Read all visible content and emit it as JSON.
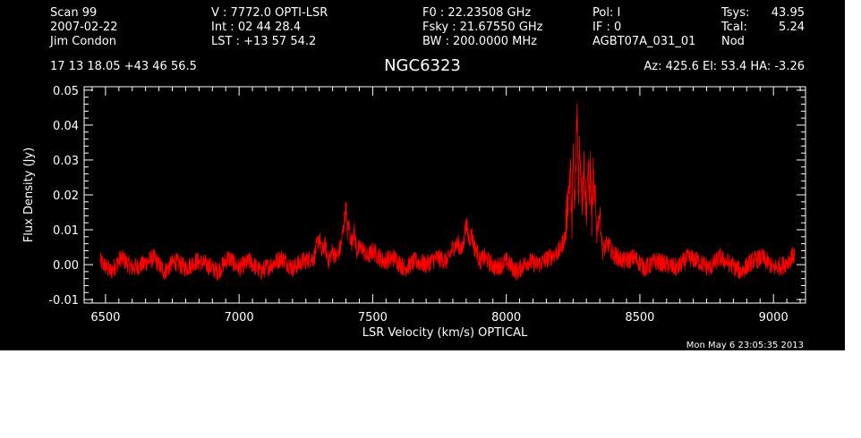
{
  "header": {
    "col1": [
      "Scan        99",
      "2007-02-22",
      "Jim Condon"
    ],
    "col2": [
      "V   :    7772.0 OPTI-LSR",
      "Int  :  02 44 28.4",
      "LST : +13 57 54.2"
    ],
    "col3": [
      "F0   :  22.23508 GHz",
      "Fsky :  21.67550 GHz",
      "BW   : 200.0000 MHz"
    ],
    "col4": [
      "Pol:     I",
      "IF :     0",
      "AGBT07A_031_01"
    ],
    "col5": [
      "Tsys:",
      "Tcal:",
      "Nod"
    ],
    "col6": [
      "43.95",
      "5.24"
    ],
    "coords": "17 13 18.05  +43 46 56.5",
    "source": "NGC6323",
    "azel": "Az: 425.6   El:  53.4   HA: -3.26"
  },
  "footer": {
    "timestamp": "Mon May  6 23:05:35 2013"
  },
  "colors": {
    "background": "#000000",
    "axes": "#ffffff",
    "trace": "#ff0000"
  },
  "chart_data": {
    "type": "line",
    "title": "NGC6323",
    "xlabel": "LSR Velocity (km/s) OPTICAL",
    "ylabel": "Flux Density (Jy)",
    "xlim": [
      6420,
      9120
    ],
    "ylim": [
      -0.011,
      0.051
    ],
    "xticks": [
      6500,
      7000,
      7500,
      8000,
      8500,
      9000
    ],
    "xtick_labels": [
      "6500",
      "7000",
      "7500",
      "8000",
      "8500",
      "9000"
    ],
    "yticks": [
      -0.01,
      0.0,
      0.01,
      0.02,
      0.03,
      0.04,
      0.05
    ],
    "ytick_labels": [
      "-0.01",
      "0.00",
      "0.01",
      "0.02",
      "0.03",
      "0.04",
      "0.05"
    ],
    "grid": false,
    "series": [
      {
        "x": [
          6480,
          6520,
          6560,
          6600,
          6640,
          6680,
          6720,
          6760,
          6800,
          6840,
          6880,
          6920,
          6960,
          7000,
          7040,
          7080,
          7120,
          7160,
          7200,
          7240,
          7280,
          7300,
          7310,
          7320,
          7335,
          7350,
          7365,
          7380,
          7390,
          7400,
          7405,
          7410,
          7420,
          7430,
          7440,
          7460,
          7480,
          7500,
          7540,
          7580,
          7620,
          7660,
          7700,
          7740,
          7780,
          7800,
          7820,
          7835,
          7850,
          7860,
          7870,
          7880,
          7890,
          7900,
          7920,
          7960,
          8000,
          8040,
          8080,
          8120,
          8160,
          8200,
          8220,
          8230,
          8240,
          8245,
          8250,
          8255,
          8260,
          8265,
          8270,
          8275,
          8280,
          8285,
          8290,
          8295,
          8300,
          8305,
          8310,
          8315,
          8320,
          8325,
          8330,
          8340,
          8350,
          8360,
          8380,
          8400,
          8440,
          8480,
          8520,
          8560,
          8600,
          8640,
          8680,
          8720,
          8760,
          8800,
          8840,
          8880,
          8920,
          8960,
          9000,
          9040,
          9080
        ],
        "y": [
          0.001,
          -0.002,
          0.002,
          -0.001,
          0.0,
          0.002,
          -0.002,
          0.001,
          -0.001,
          0.001,
          0.0,
          -0.002,
          0.002,
          -0.001,
          0.001,
          -0.002,
          0.0,
          0.002,
          -0.001,
          0.001,
          0.002,
          0.008,
          0.003,
          0.006,
          0.001,
          0.004,
          0.002,
          0.005,
          0.01,
          0.017,
          0.009,
          0.012,
          0.006,
          0.01,
          0.004,
          0.005,
          0.002,
          0.004,
          0.001,
          0.002,
          -0.001,
          0.001,
          0.0,
          0.002,
          0.001,
          0.005,
          0.006,
          0.004,
          0.012,
          0.007,
          0.009,
          0.005,
          0.004,
          0.001,
          0.002,
          -0.001,
          0.001,
          -0.002,
          0.001,
          0.0,
          0.002,
          0.004,
          0.008,
          0.018,
          0.027,
          0.01,
          0.031,
          0.015,
          0.025,
          0.047,
          0.02,
          0.035,
          0.026,
          0.018,
          0.03,
          0.022,
          0.015,
          0.028,
          0.019,
          0.029,
          0.012,
          0.025,
          0.02,
          0.01,
          0.015,
          0.004,
          0.006,
          0.003,
          0.001,
          0.002,
          -0.001,
          0.001,
          0.0,
          -0.001,
          0.002,
          0.001,
          -0.001,
          0.002,
          0.0,
          -0.002,
          0.001,
          0.002,
          -0.001,
          0.0,
          0.003
        ]
      }
    ]
  }
}
